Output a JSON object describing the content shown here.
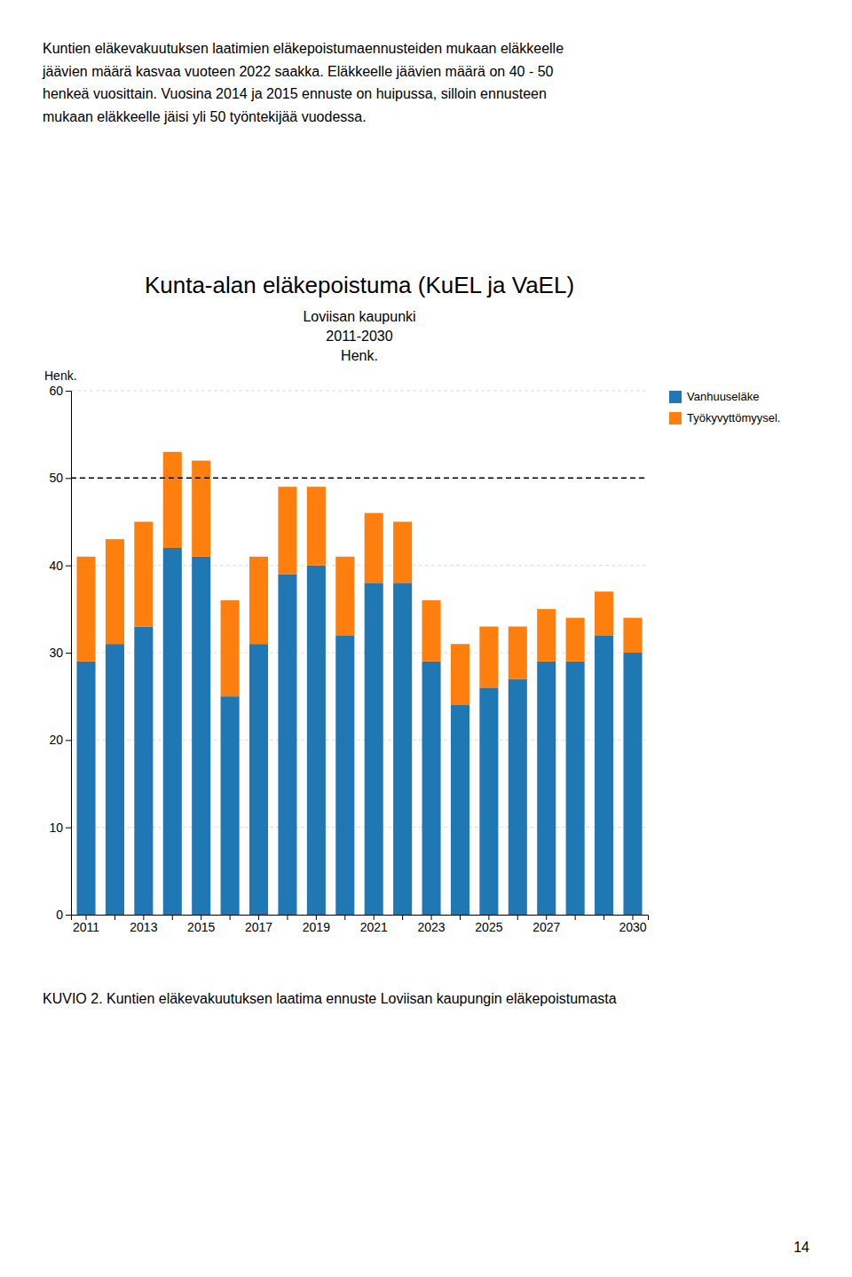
{
  "header_text": "Kuntien eläkevakuutuksen laatimien eläkepoistumaennusteiden mukaan eläkkeelle\njäävien määrä kasvaa vuoteen 2022 saakka. Eläkkeelle jäävien määrä on 40 - 50\nhenkeä vuosittain. Vuosina 2014 ja 2015 ennuste on huipussa, silloin ennusteen\nmukaan eläkkeelle jäisi yli 50 työntekijää vuodessa.",
  "footer_text": "KUVIO 2. Kuntien eläkevakuutuksen laatima ennuste Loviisan kaupungin eläkepoistumasta",
  "page_number": "14",
  "chart_data": {
    "type": "bar",
    "title": "Kunta-alan eläkepoistuma (KuEL ja VaEL)",
    "subtitle": [
      "Loviisan kaupunki",
      "2011-2030",
      "Henk."
    ],
    "ylabel": "Henk.",
    "categories": [
      "2011",
      null,
      "2013",
      null,
      "2015",
      null,
      "2017",
      null,
      "2019",
      null,
      "2021",
      null,
      "2023",
      null,
      "2025",
      null,
      "2027",
      null,
      null,
      "2030"
    ],
    "series": [
      {
        "name": "Vanhuuseläke",
        "values": [
          29,
          31,
          33,
          42,
          41,
          25,
          31,
          39,
          40,
          32,
          38,
          38,
          29,
          24,
          26,
          27,
          29,
          29,
          32,
          30
        ]
      },
      {
        "name": "Työkyvyttömyysel.",
        "values": [
          12,
          12,
          12,
          11,
          11,
          11,
          10,
          10,
          9,
          9,
          8,
          7,
          7,
          7,
          7,
          6,
          6,
          5,
          5,
          4
        ]
      }
    ],
    "stacked": true,
    "ylim": [
      0,
      60
    ],
    "yticks": [
      0,
      10,
      20,
      30,
      40,
      50,
      60
    ],
    "grid": true,
    "legend": "right",
    "reference_line": 50
  }
}
